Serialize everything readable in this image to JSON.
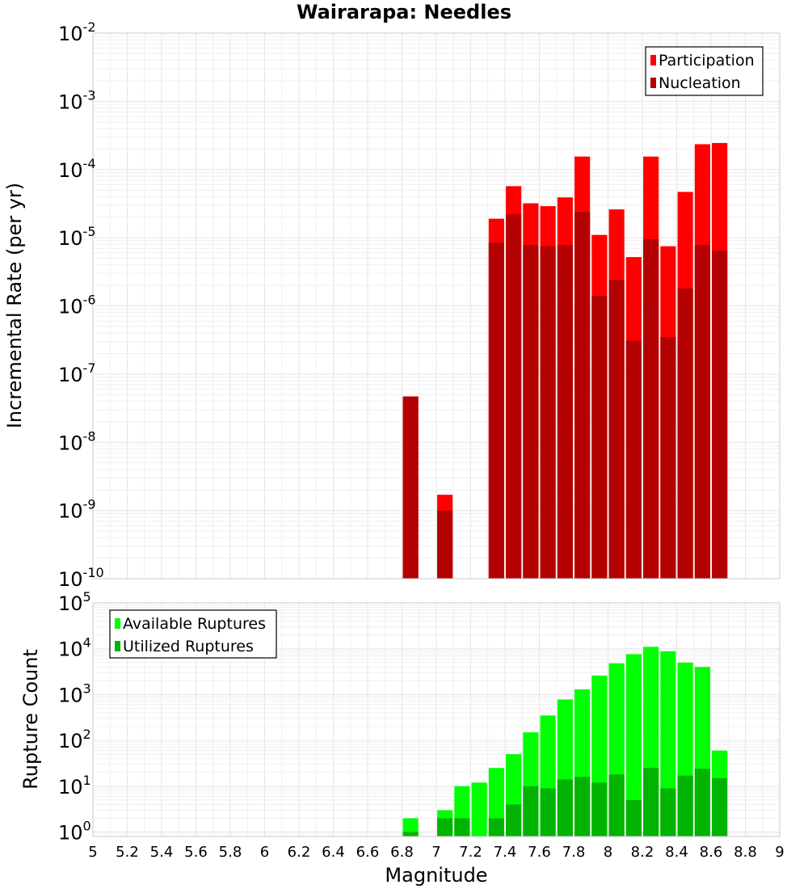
{
  "chart_data": [
    {
      "type": "bar",
      "title": "Wairarapa: Needles",
      "xlabel": "",
      "ylabel": "Incremental Rate (per yr)",
      "y_scale": "log",
      "ylim": [
        1e-10,
        0.01
      ],
      "xlim": [
        5,
        9
      ],
      "grid": true,
      "legend_position": "top-right",
      "bar_width": 0.09,
      "x": [
        6.85,
        7.05,
        7.35,
        7.45,
        7.55,
        7.65,
        7.75,
        7.85,
        7.95,
        8.05,
        8.15,
        8.25,
        8.35,
        8.45,
        8.55,
        8.65
      ],
      "series": [
        {
          "name": "Participation",
          "color": "#ff0000",
          "values": [
            4.7e-08,
            1.7e-09,
            1.9e-05,
            5.7e-05,
            3.2e-05,
            2.9e-05,
            3.9e-05,
            0.000155,
            1.1e-05,
            2.6e-05,
            5.2e-06,
            0.000155,
            7.5e-06,
            4.7e-05,
            0.000235,
            0.000245
          ]
        },
        {
          "name": "Nucleation",
          "color": "#b30000",
          "values": [
            4.7e-08,
            1e-09,
            8.5e-06,
            2.2e-05,
            7.8e-06,
            7.5e-06,
            7.8e-06,
            2.4e-05,
            1.4e-06,
            2.4e-06,
            3.1e-07,
            9.5e-06,
            3.5e-07,
            1.8e-06,
            7.8e-06,
            6.5e-06
          ]
        }
      ]
    },
    {
      "type": "bar",
      "title": "",
      "xlabel": "Magnitude",
      "ylabel": "Rupture Count",
      "y_scale": "log",
      "ylim": [
        0.8,
        100000.0
      ],
      "xlim": [
        5,
        9
      ],
      "grid": true,
      "legend_position": "top-left",
      "bar_width": 0.09,
      "x": [
        6.85,
        7.05,
        7.15,
        7.25,
        7.35,
        7.45,
        7.55,
        7.65,
        7.75,
        7.85,
        7.95,
        8.05,
        8.15,
        8.25,
        8.35,
        8.45,
        8.55,
        8.65
      ],
      "series": [
        {
          "name": "Available Ruptures",
          "color": "#00ff00",
          "values": [
            2,
            3,
            10,
            12,
            25,
            50,
            150,
            350,
            780,
            1300,
            2600,
            4800,
            7600,
            11000,
            8800,
            5000,
            4000,
            60
          ]
        },
        {
          "name": "Utilized Ruptures",
          "color": "#00b300",
          "values": [
            1,
            2,
            2,
            0,
            2,
            4,
            10,
            9,
            14,
            16,
            12,
            18,
            5,
            25,
            9,
            17,
            24,
            15
          ]
        }
      ]
    }
  ],
  "x_ticks": [
    "5",
    "5.2",
    "5.4",
    "5.6",
    "5.8",
    "6",
    "6.2",
    "6.4",
    "6.6",
    "6.8",
    "7",
    "7.2",
    "7.4",
    "7.6",
    "7.8",
    "8",
    "8.2",
    "8.4",
    "8.6",
    "8.8",
    "9"
  ],
  "top_y_ticks": [
    {
      "base": "10",
      "exp": "-2"
    },
    {
      "base": "10",
      "exp": "-3"
    },
    {
      "base": "10",
      "exp": "-4"
    },
    {
      "base": "10",
      "exp": "-5"
    },
    {
      "base": "10",
      "exp": "-6"
    },
    {
      "base": "10",
      "exp": "-7"
    },
    {
      "base": "10",
      "exp": "-8"
    },
    {
      "base": "10",
      "exp": "-9"
    },
    {
      "base": "10",
      "exp": "-10"
    }
  ],
  "bottom_y_ticks": [
    {
      "base": "10",
      "exp": "5"
    },
    {
      "base": "10",
      "exp": "4"
    },
    {
      "base": "10",
      "exp": "3"
    },
    {
      "base": "10",
      "exp": "2"
    },
    {
      "base": "10",
      "exp": "1"
    },
    {
      "base": "10",
      "exp": "0"
    }
  ]
}
